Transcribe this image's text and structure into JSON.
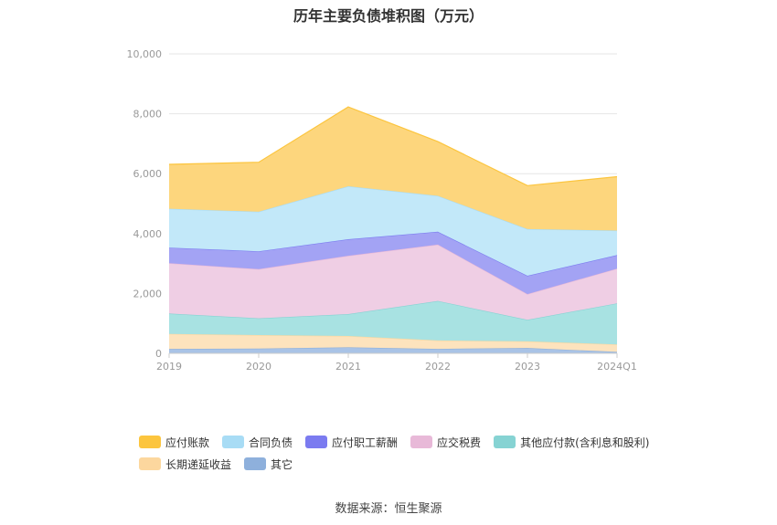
{
  "title": "历年主要负债堆积图（万元）",
  "source_label": "数据来源：恒生聚源",
  "chart_data": {
    "type": "area",
    "stacked": true,
    "categories": [
      "2019",
      "2020",
      "2021",
      "2022",
      "2023",
      "2024Q1"
    ],
    "ylim": [
      0,
      10000
    ],
    "yticks": [
      "0",
      "2,000",
      "4,000",
      "6,000",
      "8,000",
      "10,000"
    ],
    "grid": true,
    "legend_position": "bottom",
    "series": [
      {
        "name": "其它",
        "color": "#8eb0dc",
        "fill": "#a9c3e6",
        "values": [
          150,
          160,
          200,
          150,
          180,
          50
        ]
      },
      {
        "name": "长期递延收益",
        "color": "#fcd79e",
        "fill": "#fde3bd",
        "values": [
          500,
          450,
          380,
          280,
          220,
          250
        ]
      },
      {
        "name": "其他应付款(含利息和股利)",
        "color": "#86d3d3",
        "fill": "#a8e2e2",
        "values": [
          680,
          560,
          730,
          1320,
          720,
          1370
        ]
      },
      {
        "name": "应交税费",
        "color": "#e8b9d8",
        "fill": "#efcee4",
        "values": [
          1680,
          1640,
          1950,
          1880,
          860,
          1160
        ]
      },
      {
        "name": "应付职工薪酬",
        "color": "#7b7bf0",
        "fill": "#a3a3f4",
        "values": [
          520,
          600,
          550,
          430,
          610,
          450
        ]
      },
      {
        "name": "合同负债",
        "color": "#a8dcf5",
        "fill": "#c2e8f9",
        "values": [
          1300,
          1320,
          1770,
          1200,
          1560,
          820
        ]
      },
      {
        "name": "应付账款",
        "color": "#fcc53e",
        "fill": "#fdd67d",
        "values": [
          1480,
          1650,
          2650,
          1810,
          1450,
          1800
        ]
      }
    ]
  }
}
